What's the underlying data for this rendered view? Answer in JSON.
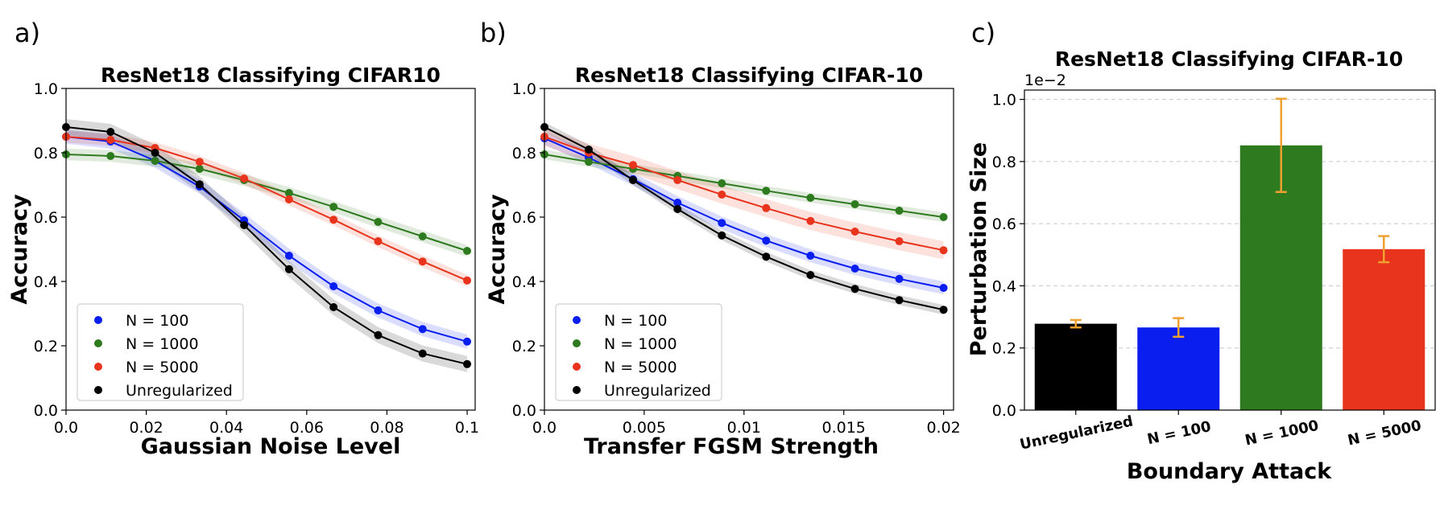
{
  "colors": {
    "n100": "#0a1ef0",
    "n1000": "#2e7a1e",
    "n5000": "#e8341c",
    "unreg": "#000000",
    "errorbar": "#f0a030",
    "grid": "#c8c8c8"
  },
  "chart_data": [
    {
      "type": "line",
      "panel": "a)",
      "title": "ResNet18 Classifying CIFAR10",
      "xlabel": "Gaussian Noise Level",
      "ylabel": "Accuracy",
      "xlim": [
        0,
        0.102
      ],
      "ylim": [
        0,
        1.0
      ],
      "xticks": [
        0,
        0.02,
        0.04,
        0.06,
        0.08,
        0.1
      ],
      "xtick_labels": [
        "0.0",
        "0.02",
        "0.04",
        "0.06",
        "0.08",
        "0.1"
      ],
      "yticks": [
        0,
        0.2,
        0.4,
        0.6,
        0.8,
        1.0
      ],
      "ytick_labels": [
        "0.0",
        "0.2",
        "0.4",
        "0.6",
        "0.8",
        "1.0"
      ],
      "legend_position": "lower-left",
      "x": [
        0,
        0.0111,
        0.0222,
        0.0333,
        0.0444,
        0.0556,
        0.0667,
        0.0778,
        0.0889,
        0.1
      ],
      "series": [
        {
          "name": "N = 100",
          "key": "n100",
          "values": [
            0.85,
            0.835,
            0.775,
            0.695,
            0.59,
            0.48,
            0.385,
            0.31,
            0.252,
            0.213
          ],
          "band": 0.022
        },
        {
          "name": "N = 1000",
          "key": "n1000",
          "values": [
            0.795,
            0.79,
            0.775,
            0.75,
            0.715,
            0.675,
            0.632,
            0.585,
            0.54,
            0.495
          ],
          "band": 0.018
        },
        {
          "name": "N = 5000",
          "key": "n5000",
          "values": [
            0.85,
            0.84,
            0.815,
            0.772,
            0.72,
            0.655,
            0.592,
            0.525,
            0.462,
            0.403
          ],
          "band": 0.018
        },
        {
          "name": "Unregularized",
          "key": "unreg",
          "values": [
            0.88,
            0.865,
            0.8,
            0.702,
            0.575,
            0.438,
            0.32,
            0.233,
            0.176,
            0.143
          ],
          "band": 0.025
        }
      ]
    },
    {
      "type": "line",
      "panel": "b)",
      "title": "ResNet18 Classifying CIFAR-10",
      "xlabel": "Transfer FGSM Strength",
      "ylabel": "Accuracy",
      "xlim": [
        0,
        0.0205
      ],
      "ylim": [
        0,
        1.0
      ],
      "xticks": [
        0,
        0.005,
        0.01,
        0.015,
        0.02
      ],
      "xtick_labels": [
        "0.0",
        "0.005",
        "0.01",
        "0.015",
        "0.02"
      ],
      "yticks": [
        0,
        0.2,
        0.4,
        0.6,
        0.8,
        1.0
      ],
      "ytick_labels": [
        "0.0",
        "0.2",
        "0.4",
        "0.6",
        "0.8",
        "1.0"
      ],
      "legend_position": "lower-left",
      "x": [
        0,
        0.00222,
        0.00444,
        0.00667,
        0.00889,
        0.01111,
        0.01333,
        0.01556,
        0.01778,
        0.02
      ],
      "series": [
        {
          "name": "N  =  100",
          "key": "n100",
          "values": [
            0.845,
            0.785,
            0.718,
            0.645,
            0.582,
            0.527,
            0.48,
            0.44,
            0.408,
            0.38
          ],
          "band": 0.02
        },
        {
          "name": "N  =  1000",
          "key": "n1000",
          "values": [
            0.795,
            0.772,
            0.75,
            0.728,
            0.705,
            0.682,
            0.66,
            0.64,
            0.62,
            0.6
          ],
          "band": 0.015
        },
        {
          "name": "N  =  5000",
          "key": "n5000",
          "values": [
            0.85,
            0.8,
            0.762,
            0.715,
            0.67,
            0.628,
            0.588,
            0.555,
            0.525,
            0.497
          ],
          "band": 0.028
        },
        {
          "name": "Unregularized",
          "key": "unreg",
          "values": [
            0.88,
            0.81,
            0.715,
            0.625,
            0.543,
            0.477,
            0.42,
            0.377,
            0.342,
            0.312
          ],
          "band": 0.015
        }
      ]
    },
    {
      "type": "bar",
      "panel": "c)",
      "title": "ResNet18 Classifying CIFAR-10",
      "xlabel": "Boundary Attack",
      "ylabel": "Perturbation Size",
      "scale_label": "1e−2",
      "ylim": [
        0,
        1.0
      ],
      "yticks": [
        0,
        0.2,
        0.4,
        0.6,
        0.8,
        1.0
      ],
      "ytick_labels": [
        "0.0",
        "0.2",
        "0.4",
        "0.6",
        "0.8",
        "1.0"
      ],
      "grid": true,
      "categories": [
        "Unregularized",
        "N = 100",
        "N = 1000",
        "N = 5000"
      ],
      "keys": [
        "unreg",
        "n100",
        "n1000",
        "n5000"
      ],
      "values": [
        0.278,
        0.266,
        0.852,
        0.518
      ],
      "errors": [
        0.012,
        0.03,
        0.15,
        0.042
      ]
    }
  ]
}
